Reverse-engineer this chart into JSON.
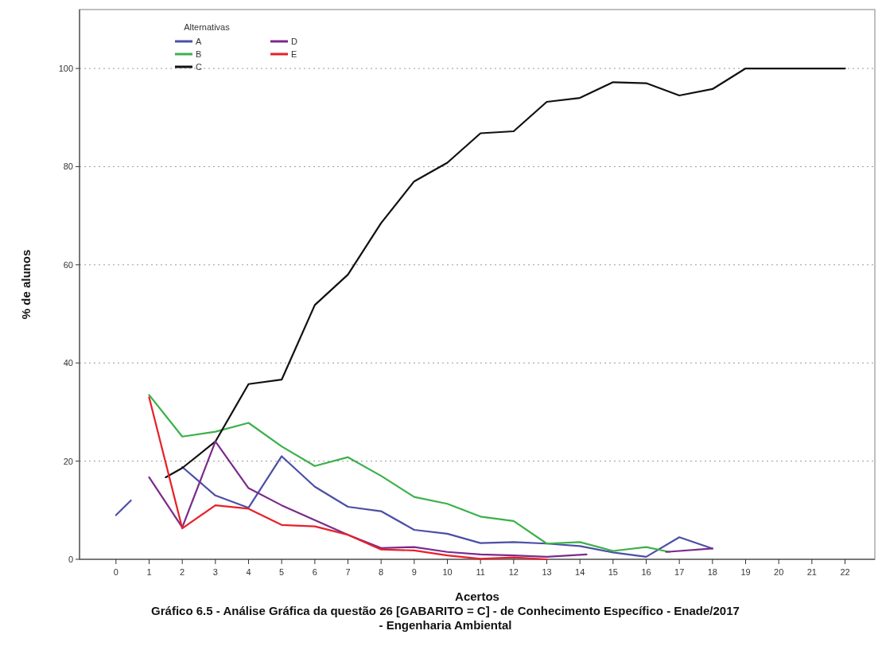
{
  "chart_data": {
    "type": "line",
    "title": "Gráfico 6.5 - Análise Gráfica da questão 26 [GABARITO = C] - de Conhecimento Específico - Enade/2017 - Engenharia Ambiental",
    "xlabel": "Acertos",
    "ylabel": "% de alunos",
    "legend_title": "Alternativas",
    "series": [
      {
        "name": "A",
        "color": "#4b4fa6",
        "x": [
          0,
          0.45,
          1,
          2,
          3,
          4,
          5,
          6,
          7,
          8,
          9,
          10,
          11,
          12,
          13,
          14,
          15,
          16,
          17,
          18
        ],
        "values": [
          9,
          12,
          null,
          18.8,
          13,
          10.5,
          21,
          14.8,
          10.7,
          9.8,
          6,
          5.2,
          3.3,
          3.5,
          3.2,
          2.7,
          1.4,
          0.5,
          4.5,
          2.2
        ]
      },
      {
        "name": "B",
        "color": "#3cb04a",
        "x": [
          1,
          2,
          3,
          4,
          5,
          6,
          7,
          8,
          9,
          10,
          11,
          12,
          13,
          14,
          15,
          16,
          16.7
        ],
        "values": [
          33.5,
          25,
          26,
          27.8,
          23,
          19,
          20.8,
          17,
          12.7,
          11.3,
          8.7,
          7.8,
          3.2,
          3.5,
          1.7,
          2.5,
          1.5
        ]
      },
      {
        "name": "C",
        "color": "#111111",
        "x": [
          1.5,
          2,
          3,
          4,
          5,
          6,
          7,
          8,
          9,
          10,
          11,
          12,
          13,
          14,
          15,
          16,
          17,
          18,
          19,
          20,
          21,
          22
        ],
        "values": [
          16.7,
          18.6,
          24,
          35.7,
          36.6,
          51.8,
          58,
          68.5,
          77,
          80.8,
          86.8,
          87.2,
          93.2,
          94,
          97.2,
          97,
          94.5,
          95.8,
          100,
          100,
          100,
          100
        ]
      },
      {
        "name": "D",
        "color": "#7a2a8c",
        "x": [
          1,
          2,
          3,
          4,
          5,
          6,
          7,
          8,
          9,
          10,
          11,
          12,
          13,
          14.2,
          15,
          16.6,
          18
        ],
        "values": [
          16.7,
          6.5,
          24,
          14.5,
          11,
          8,
          5,
          2.3,
          2.5,
          1.5,
          1,
          0.8,
          0.5,
          1,
          null,
          1.5,
          2.2
        ]
      },
      {
        "name": "E",
        "color": "#e8202a",
        "x": [
          1,
          2,
          3,
          4,
          5,
          6,
          7,
          8,
          9,
          10,
          11,
          12,
          13
        ],
        "values": [
          33,
          6.3,
          11,
          10.3,
          7,
          6.7,
          5,
          2,
          1.8,
          0.8,
          0.1,
          0.4,
          0
        ]
      }
    ],
    "xlim": [
      -1.1,
      22.9
    ],
    "xticks": [
      0,
      1,
      2,
      3,
      4,
      5,
      6,
      7,
      8,
      9,
      10,
      11,
      12,
      13,
      14,
      15,
      16,
      17,
      18,
      19,
      20,
      21,
      22
    ],
    "ylim": [
      0,
      112
    ],
    "yticks": [
      0,
      20,
      40,
      60,
      80,
      100
    ],
    "grid": "y",
    "legend": "top left",
    "line_style": "solid",
    "marker": "none"
  }
}
